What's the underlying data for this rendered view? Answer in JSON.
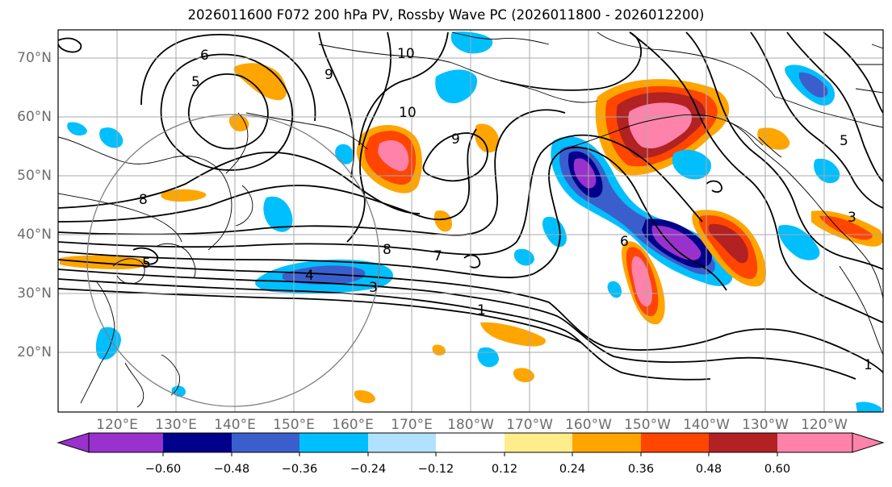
{
  "title": "2026011600 F072 200 hPa PV, Rossby Wave PC (2026011800 - 2026012200)",
  "lat_labels": [
    "70°N",
    "60°N",
    "50°N",
    "40°N",
    "30°N",
    "20°N"
  ],
  "lon_labels": [
    "120°E",
    "130°E",
    "140°E",
    "150°E",
    "160°E",
    "170°E",
    "180°W",
    "170°W",
    "160°W",
    "150°W",
    "140°W",
    "130°W",
    "120°W"
  ],
  "contour_labels": [
    "6",
    "5",
    "10",
    "9",
    "10",
    "9",
    "8",
    "8",
    "7",
    "5",
    "4",
    "3",
    "1",
    "6",
    "1",
    "5",
    "3"
  ],
  "colorbar": {
    "ticks": [
      "−0.60",
      "−0.48",
      "−0.36",
      "−0.24",
      "−0.12",
      "0.12",
      "0.24",
      "0.36",
      "0.48",
      "0.60"
    ],
    "colors": [
      "#9932cc",
      "#00008b",
      "#3a5fcd",
      "#00bfff",
      "#b0e2ff",
      "#ffffff",
      "#ffec8b",
      "#ffa500",
      "#ff4500",
      "#b22222",
      "#ff82ab"
    ]
  }
}
